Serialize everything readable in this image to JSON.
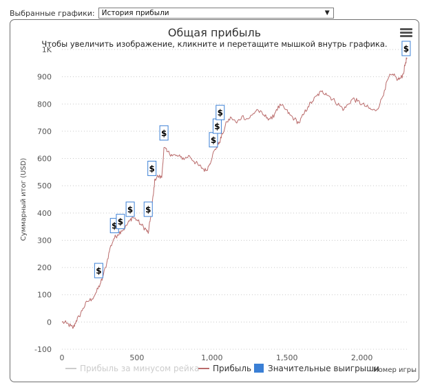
{
  "selector": {
    "label": "Выбранные графики:",
    "value": "История прибыли"
  },
  "chart": {
    "title": "Общая прибыль",
    "subtitle": "Чтобы увеличить изображение, кликните и перетащите мышкой внутрь графика.",
    "menu_icon": "hamburger-menu-icon"
  },
  "chart_data": {
    "type": "line",
    "title": "Общая прибыль",
    "xlabel": "Номер игры",
    "ylabel": "Суммарный итог (USD)",
    "xlim": [
      0,
      2300
    ],
    "ylim": [
      -100,
      1000
    ],
    "x_ticks": [
      0,
      500,
      1000,
      1500,
      2000
    ],
    "x_tick_labels": [
      "0",
      "500",
      "1,000",
      "1,500",
      "2,000"
    ],
    "y_ticks": [
      -100,
      0,
      100,
      200,
      300,
      400,
      500,
      600,
      700,
      800,
      900,
      1000
    ],
    "y_tick_labels": [
      "-100",
      "0",
      "100",
      "200",
      "300",
      "400",
      "500",
      "600",
      "700",
      "800",
      "900",
      "1K"
    ],
    "grid": "horizontal-dotted",
    "legend_position": "bottom",
    "series": [
      {
        "name": "Прибыль за минусом рейка",
        "color": "#cccccc",
        "visible": false,
        "points": []
      },
      {
        "name": "Прибыль",
        "color": "#b96a6a",
        "visible": true,
        "points": [
          [
            0,
            0
          ],
          [
            30,
            -5
          ],
          [
            60,
            -15
          ],
          [
            75,
            -22
          ],
          [
            95,
            5
          ],
          [
            115,
            20
          ],
          [
            140,
            50
          ],
          [
            170,
            75
          ],
          [
            200,
            85
          ],
          [
            230,
            110
          ],
          [
            255,
            140
          ],
          [
            270,
            160
          ],
          [
            300,
            220
          ],
          [
            320,
            270
          ],
          [
            345,
            305
          ],
          [
            370,
            320
          ],
          [
            395,
            335
          ],
          [
            420,
            345
          ],
          [
            450,
            370
          ],
          [
            470,
            385
          ],
          [
            500,
            375
          ],
          [
            530,
            355
          ],
          [
            560,
            340
          ],
          [
            575,
            325
          ],
          [
            590,
            380
          ],
          [
            610,
            470
          ],
          [
            620,
            525
          ],
          [
            640,
            535
          ],
          [
            665,
            530
          ],
          [
            680,
            640
          ],
          [
            700,
            625
          ],
          [
            730,
            615
          ],
          [
            760,
            610
          ],
          [
            790,
            605
          ],
          [
            820,
            600
          ],
          [
            850,
            610
          ],
          [
            880,
            590
          ],
          [
            910,
            575
          ],
          [
            935,
            565
          ],
          [
            960,
            555
          ],
          [
            985,
            580
          ],
          [
            1005,
            615
          ],
          [
            1030,
            640
          ],
          [
            1050,
            660
          ],
          [
            1070,
            690
          ],
          [
            1100,
            735
          ],
          [
            1130,
            750
          ],
          [
            1165,
            730
          ],
          [
            1200,
            755
          ],
          [
            1240,
            745
          ],
          [
            1270,
            760
          ],
          [
            1300,
            780
          ],
          [
            1340,
            760
          ],
          [
            1370,
            750
          ],
          [
            1400,
            745
          ],
          [
            1430,
            780
          ],
          [
            1460,
            795
          ],
          [
            1490,
            780
          ],
          [
            1520,
            760
          ],
          [
            1550,
            745
          ],
          [
            1580,
            730
          ],
          [
            1610,
            760
          ],
          [
            1640,
            790
          ],
          [
            1670,
            810
          ],
          [
            1700,
            830
          ],
          [
            1730,
            845
          ],
          [
            1760,
            840
          ],
          [
            1790,
            825
          ],
          [
            1820,
            810
          ],
          [
            1850,
            795
          ],
          [
            1880,
            780
          ],
          [
            1910,
            800
          ],
          [
            1940,
            820
          ],
          [
            1970,
            810
          ],
          [
            2000,
            800
          ],
          [
            2030,
            790
          ],
          [
            2060,
            780
          ],
          [
            2090,
            775
          ],
          [
            2120,
            800
          ],
          [
            2150,
            850
          ],
          [
            2180,
            900
          ],
          [
            2210,
            905
          ],
          [
            2240,
            890
          ],
          [
            2260,
            895
          ],
          [
            2275,
            910
          ],
          [
            2290,
            950
          ],
          [
            2300,
            970
          ]
        ]
      }
    ],
    "flags": {
      "name": "Значительные выигрыши",
      "color": "#3a7fd5",
      "label": "$",
      "points": [
        [
          245,
          185
        ],
        [
          350,
          350
        ],
        [
          390,
          365
        ],
        [
          455,
          410
        ],
        [
          575,
          410
        ],
        [
          600,
          560
        ],
        [
          680,
          690
        ],
        [
          1010,
          665
        ],
        [
          1035,
          715
        ],
        [
          1055,
          765
        ],
        [
          2295,
          1000
        ]
      ]
    }
  }
}
